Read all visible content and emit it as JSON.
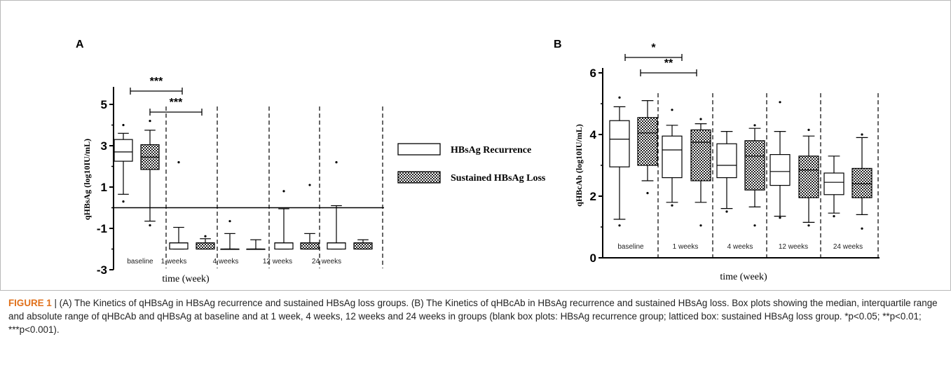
{
  "caption": {
    "figure_label": "FIGURE 1",
    "text": " | (A) The Kinetics of qHBsAg in HBsAg recurrence and sustained HBsAg loss groups. (B) The Kinetics of qHBcAb in HBsAg recurrence and sustained HBsAg loss. Box plots showing the median, interquartile range and absolute range of qHBcAb and qHBsAg at baseline and at 1 week, 4 weeks, 12 weeks and 24 weeks in groups (blank box plots: HBsAg recurrence group; latticed box: sustained HBsAg loss group. *p<0.05; **p<0.01; ***p<0.001)."
  },
  "legend": {
    "items": [
      {
        "label": "HBsAg Recurrence",
        "pattern": "blank"
      },
      {
        "label": "Sustained HBsAg Loss",
        "pattern": "latticed"
      }
    ]
  },
  "chart_data": [
    {
      "panel": "A",
      "type": "box",
      "xlabel": "time (week)",
      "ylabel": "qHBsAg (log10IU/mL)",
      "ylim": [
        -3,
        6
      ],
      "yticks": [
        "5",
        "3",
        "1",
        "-1",
        "-3"
      ],
      "yticks_values": [
        5,
        3,
        1,
        -1,
        -3
      ],
      "reference_line": 0,
      "categories": [
        "baseline",
        "1 weeks",
        "4 weeks",
        "12 weeks",
        "24 weeks"
      ],
      "series": [
        {
          "name": "HBsAg Recurrence",
          "boxes": [
            {
              "min": 0.65,
              "q1": 2.25,
              "median": 2.7,
              "q3": 3.3,
              "max": 3.6,
              "outliers": [
                4.0,
                0.3
              ]
            },
            {
              "min": -2.0,
              "q1": -2.0,
              "median": -1.7,
              "q3": -1.7,
              "max": -0.95,
              "outliers": [
                2.2
              ]
            },
            {
              "min": -2.0,
              "q1": -2.0,
              "median": -2.0,
              "q3": -2.0,
              "max": -1.25,
              "outliers": [
                -0.65
              ]
            },
            {
              "min": -2.0,
              "q1": -2.0,
              "median": -1.7,
              "q3": -1.7,
              "max": -0.05,
              "outliers": [
                0.8
              ]
            },
            {
              "min": -2.0,
              "q1": -2.0,
              "median": -1.7,
              "q3": -1.7,
              "max": 0.1,
              "outliers": [
                2.2
              ]
            }
          ]
        },
        {
          "name": "Sustained HBsAg Loss",
          "boxes": [
            {
              "min": -0.65,
              "q1": 1.85,
              "median": 2.45,
              "q3": 3.05,
              "max": 3.75,
              "outliers": [
                4.2,
                -0.85
              ]
            },
            {
              "min": -2.0,
              "q1": -2.0,
              "median": -1.7,
              "q3": -1.7,
              "max": -1.5,
              "outliers": [
                -1.38
              ]
            },
            {
              "min": -2.0,
              "q1": -2.0,
              "median": -2.0,
              "q3": -2.0,
              "max": -1.55,
              "outliers": []
            },
            {
              "min": -2.0,
              "q1": -2.0,
              "median": -1.7,
              "q3": -1.7,
              "max": -1.25,
              "outliers": [
                1.1
              ]
            },
            {
              "min": -2.0,
              "q1": -2.0,
              "median": -1.7,
              "q3": -1.7,
              "max": -1.55,
              "outliers": []
            }
          ]
        }
      ],
      "significance": [
        {
          "from": [
            0,
            0
          ],
          "to": [
            1,
            0
          ],
          "label": "***"
        },
        {
          "from": [
            0,
            1
          ],
          "to": [
            1,
            1
          ],
          "label": "***"
        }
      ]
    },
    {
      "panel": "B",
      "type": "box",
      "xlabel": "time (week)",
      "ylabel": "qHBcAb (log10IU/mL)",
      "ylim": [
        0,
        6
      ],
      "yticks": [
        "6",
        "4",
        "2",
        "0"
      ],
      "yticks_values": [
        6,
        4,
        2,
        0
      ],
      "categories": [
        "baseline",
        "1 weeks",
        "4 weeks",
        "12 weeks",
        "24 weeks"
      ],
      "series": [
        {
          "name": "HBsAg Recurrence",
          "boxes": [
            {
              "min": 1.25,
              "q1": 2.95,
              "median": 3.85,
              "q3": 4.45,
              "max": 4.9,
              "outliers": [
                5.2,
                1.05
              ]
            },
            {
              "min": 1.8,
              "q1": 2.6,
              "median": 3.5,
              "q3": 3.95,
              "max": 4.3,
              "outliers": [
                4.8,
                1.7
              ]
            },
            {
              "min": 1.6,
              "q1": 2.6,
              "median": 3.0,
              "q3": 3.7,
              "max": 4.1,
              "outliers": [
                1.5
              ]
            },
            {
              "min": 1.35,
              "q1": 2.35,
              "median": 2.8,
              "q3": 3.35,
              "max": 4.1,
              "outliers": [
                5.05,
                1.3
              ]
            },
            {
              "min": 1.45,
              "q1": 2.05,
              "median": 2.45,
              "q3": 2.75,
              "max": 3.3,
              "outliers": [
                1.35
              ]
            }
          ]
        },
        {
          "name": "Sustained HBsAg Loss",
          "boxes": [
            {
              "min": 2.5,
              "q1": 3.0,
              "median": 4.05,
              "q3": 4.55,
              "max": 5.1,
              "outliers": [
                2.1
              ]
            },
            {
              "min": 1.8,
              "q1": 2.5,
              "median": 3.75,
              "q3": 4.15,
              "max": 4.35,
              "outliers": [
                4.5,
                1.05
              ]
            },
            {
              "min": 1.65,
              "q1": 2.2,
              "median": 3.3,
              "q3": 3.8,
              "max": 4.2,
              "outliers": [
                4.3,
                1.05
              ]
            },
            {
              "min": 1.15,
              "q1": 1.95,
              "median": 2.85,
              "q3": 3.3,
              "max": 3.95,
              "outliers": [
                4.15,
                1.05
              ]
            },
            {
              "min": 1.4,
              "q1": 1.95,
              "median": 2.4,
              "q3": 2.9,
              "max": 3.9,
              "outliers": [
                4.0,
                0.95
              ]
            }
          ]
        }
      ],
      "significance": [
        {
          "from": [
            0,
            0
          ],
          "to": [
            1,
            0
          ],
          "label": "*"
        },
        {
          "from": [
            0,
            1
          ],
          "to": [
            1,
            1
          ],
          "label": "**"
        }
      ]
    }
  ]
}
